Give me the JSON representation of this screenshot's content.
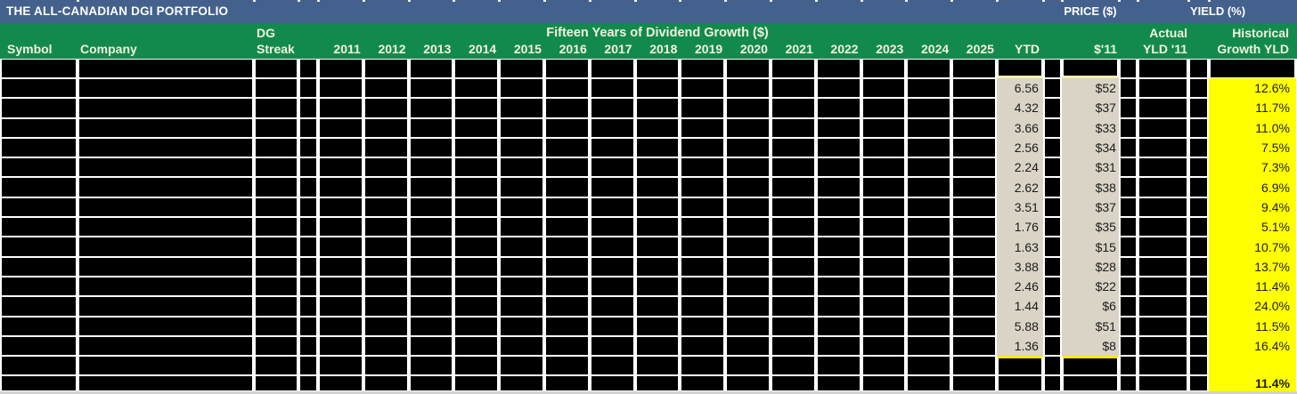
{
  "titlebar": {
    "title": "THE ALL-CANADIAN DGI PORTFOLIO",
    "price_label": "PRICE ($)",
    "yield_label": "YIELD (%)"
  },
  "header": {
    "symbol": "Symbol",
    "company": "Company",
    "dg_line1": "DG",
    "dg_line2": "Streak",
    "span_title": "Fifteen Years of Dividend Growth ($)",
    "years": [
      "2011",
      "2012",
      "2013",
      "2014",
      "2015",
      "2016",
      "2017",
      "2018",
      "2019",
      "2020",
      "2021",
      "2022",
      "2023",
      "2024",
      "2025"
    ],
    "ytd": "YTD",
    "price_11": "$'11",
    "actual_line1": "Actual",
    "actual_line2": "YLD '11",
    "hist_line1": "Historical",
    "hist_line2": "Growth YLD"
  },
  "table": {
    "rows": [
      {
        "ytd": "6.56",
        "price_11": "$52",
        "hist_growth_yld": "12.6%"
      },
      {
        "ytd": "4.32",
        "price_11": "$37",
        "hist_growth_yld": "11.7%"
      },
      {
        "ytd": "3.66",
        "price_11": "$33",
        "hist_growth_yld": "11.0%"
      },
      {
        "ytd": "2.56",
        "price_11": "$34",
        "hist_growth_yld": "7.5%"
      },
      {
        "ytd": "2.24",
        "price_11": "$31",
        "hist_growth_yld": "7.3%"
      },
      {
        "ytd": "2.62",
        "price_11": "$38",
        "hist_growth_yld": "6.9%"
      },
      {
        "ytd": "3.51",
        "price_11": "$37",
        "hist_growth_yld": "9.4%"
      },
      {
        "ytd": "1.76",
        "price_11": "$35",
        "hist_growth_yld": "5.1%"
      },
      {
        "ytd": "1.63",
        "price_11": "$15",
        "hist_growth_yld": "10.7%"
      },
      {
        "ytd": "3.88",
        "price_11": "$28",
        "hist_growth_yld": "13.7%"
      },
      {
        "ytd": "2.46",
        "price_11": "$22",
        "hist_growth_yld": "11.4%"
      },
      {
        "ytd": "1.44",
        "price_11": "$6",
        "hist_growth_yld": "24.0%"
      },
      {
        "ytd": "5.88",
        "price_11": "$51",
        "hist_growth_yld": "11.5%"
      },
      {
        "ytd": "1.36",
        "price_11": "$8",
        "hist_growth_yld": "16.4%"
      }
    ],
    "summary": {
      "hist_growth_yld": "11.4%"
    }
  },
  "colors": {
    "title_bar_blue": "#44618E",
    "header_green": "#128A4E",
    "cell_beige": "#D9D4C5",
    "highlight_yellow": "#FFFF00",
    "redacted_black": "#000000"
  }
}
